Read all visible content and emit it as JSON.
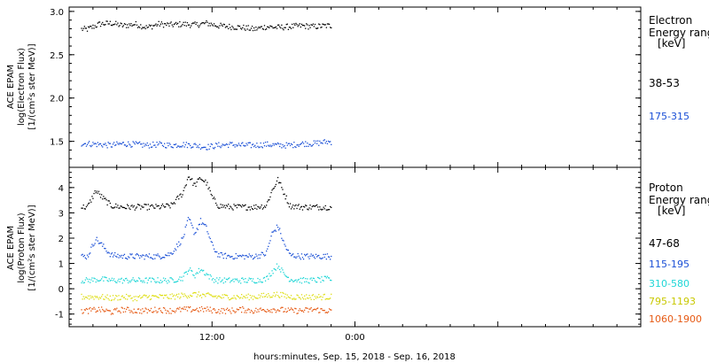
{
  "xaxis": {
    "label": "hours:minutes, Sep. 15, 2018 - Sep. 16, 2018",
    "range_hours": [
      0,
      48
    ],
    "ticks": [
      {
        "hour": 12,
        "label": "12:00"
      },
      {
        "hour": 24,
        "label": "0:00"
      }
    ]
  },
  "chart_data": [
    {
      "type": "scatter",
      "ylabel": [
        "ACE EPAM",
        "log(Electron Flux)",
        "[1/(cm²s ster MeV)]"
      ],
      "ylim": [
        1.2,
        3.05
      ],
      "yticks": [
        1.5,
        2.0,
        2.5,
        3.0
      ],
      "ytick_labels": [
        "1.5",
        "2.0",
        "2.5",
        "3.0"
      ],
      "legend_title": [
        "Electron",
        "Energy range",
        "[keV]"
      ],
      "series": [
        {
          "name": "38-53",
          "color": "#000000",
          "x": [
            1.5,
            2.5,
            3.5,
            4.5,
            5.5,
            6.5,
            7.5,
            8.5,
            9.5,
            10.5,
            11.5,
            12.5,
            13.5,
            14.5,
            15.5,
            16.5,
            17.5,
            18.5,
            19.5,
            20.5,
            21.5
          ],
          "y": [
            2.8,
            2.86,
            2.87,
            2.84,
            2.86,
            2.82,
            2.86,
            2.85,
            2.86,
            2.85,
            2.87,
            2.84,
            2.83,
            2.82,
            2.8,
            2.83,
            2.82,
            2.83,
            2.84,
            2.83,
            2.84
          ]
        },
        {
          "name": "175-315",
          "color": "#1a4fd6",
          "x": [
            1.5,
            2.5,
            3.5,
            4.5,
            5.5,
            6.5,
            7.5,
            8.5,
            9.5,
            10.5,
            11.5,
            12.5,
            13.5,
            14.5,
            15.5,
            16.5,
            17.5,
            18.5,
            19.5,
            20.5,
            21.5
          ],
          "y": [
            1.48,
            1.47,
            1.46,
            1.48,
            1.47,
            1.46,
            1.47,
            1.46,
            1.47,
            1.46,
            1.44,
            1.46,
            1.47,
            1.46,
            1.46,
            1.47,
            1.46,
            1.46,
            1.48,
            1.48,
            1.5
          ]
        }
      ]
    },
    {
      "type": "scatter",
      "ylabel": [
        "ACE EPAM",
        "log(Proton Flux)",
        "[1/(cm²s ster MeV)]"
      ],
      "ylim": [
        -1.5,
        4.8
      ],
      "yticks": [
        -1,
        0,
        1,
        2,
        3,
        4
      ],
      "ytick_labels": [
        "-1",
        "0",
        "1",
        "2",
        "3",
        "4"
      ],
      "legend_title": [
        "Proton",
        "Energy range",
        "[keV]"
      ],
      "series": [
        {
          "name": "47-68",
          "color": "#000000",
          "x": [
            1.5,
            2.2,
            2.8,
            3.5,
            4.5,
            5.5,
            6.5,
            7.5,
            8.5,
            9.5,
            10.0,
            10.5,
            11.0,
            11.5,
            12.0,
            12.5,
            13.5,
            14.5,
            15.5,
            16.5,
            17.0,
            17.5,
            18.0,
            18.5,
            19.5,
            20.5,
            21.5
          ],
          "y": [
            3.25,
            3.9,
            3.6,
            3.3,
            3.25,
            3.25,
            3.25,
            3.25,
            3.3,
            3.8,
            4.5,
            4.1,
            4.4,
            4.2,
            3.6,
            3.3,
            3.25,
            3.25,
            3.25,
            3.3,
            3.9,
            4.35,
            3.8,
            3.3,
            3.25,
            3.25,
            3.25
          ]
        },
        {
          "name": "115-195",
          "color": "#1a4fd6",
          "x": [
            1.5,
            2.2,
            2.8,
            3.5,
            4.5,
            5.5,
            6.5,
            7.5,
            8.5,
            9.5,
            10.0,
            10.5,
            11.0,
            11.5,
            12.0,
            12.5,
            13.5,
            14.5,
            15.5,
            16.5,
            17.0,
            17.5,
            18.0,
            18.5,
            19.5,
            20.5,
            21.5
          ],
          "y": [
            1.3,
            2.0,
            1.7,
            1.35,
            1.3,
            1.3,
            1.3,
            1.3,
            1.4,
            2.0,
            2.8,
            2.2,
            2.7,
            2.4,
            1.7,
            1.35,
            1.3,
            1.3,
            1.3,
            1.4,
            2.2,
            2.5,
            1.8,
            1.35,
            1.3,
            1.3,
            1.3
          ]
        },
        {
          "name": "310-580",
          "color": "#1ed6d6",
          "x": [
            1.5,
            2.5,
            3.5,
            4.5,
            5.5,
            6.5,
            7.5,
            8.5,
            9.5,
            10.0,
            10.5,
            11.0,
            11.5,
            12.0,
            12.5,
            13.5,
            14.5,
            15.5,
            16.5,
            17.0,
            17.5,
            18.0,
            18.5,
            19.5,
            20.5,
            21.5
          ],
          "y": [
            0.35,
            0.4,
            0.35,
            0.35,
            0.35,
            0.35,
            0.35,
            0.35,
            0.45,
            0.8,
            0.55,
            0.8,
            0.6,
            0.4,
            0.35,
            0.35,
            0.35,
            0.35,
            0.4,
            0.7,
            0.95,
            0.6,
            0.4,
            0.35,
            0.35,
            0.4
          ]
        },
        {
          "name": "795-1193",
          "color": "#dede14",
          "x": [
            1.5,
            2.5,
            3.5,
            4.5,
            5.5,
            6.5,
            7.5,
            8.5,
            9.5,
            10.5,
            11.5,
            12.5,
            13.5,
            14.5,
            15.5,
            16.5,
            17.5,
            18.5,
            19.5,
            20.5,
            21.5
          ],
          "y": [
            -0.3,
            -0.3,
            -0.35,
            -0.3,
            -0.35,
            -0.3,
            -0.3,
            -0.3,
            -0.25,
            -0.2,
            -0.25,
            -0.3,
            -0.3,
            -0.3,
            -0.3,
            -0.25,
            -0.2,
            -0.3,
            -0.3,
            -0.3,
            -0.3
          ]
        },
        {
          "name": "1060-1900",
          "color": "#e65a14",
          "x": [
            1.5,
            2.5,
            3.5,
            4.5,
            5.5,
            6.5,
            7.5,
            8.5,
            9.5,
            10.5,
            11.5,
            12.5,
            13.5,
            14.5,
            15.5,
            16.5,
            17.5,
            18.5,
            19.5,
            20.5,
            21.5
          ],
          "y": [
            -0.85,
            -0.8,
            -0.9,
            -0.8,
            -0.85,
            -0.85,
            -0.8,
            -0.85,
            -0.8,
            -0.8,
            -0.8,
            -0.85,
            -0.85,
            -0.8,
            -0.85,
            -0.8,
            -0.8,
            -0.85,
            -0.85,
            -0.8,
            -0.85
          ]
        }
      ]
    }
  ]
}
